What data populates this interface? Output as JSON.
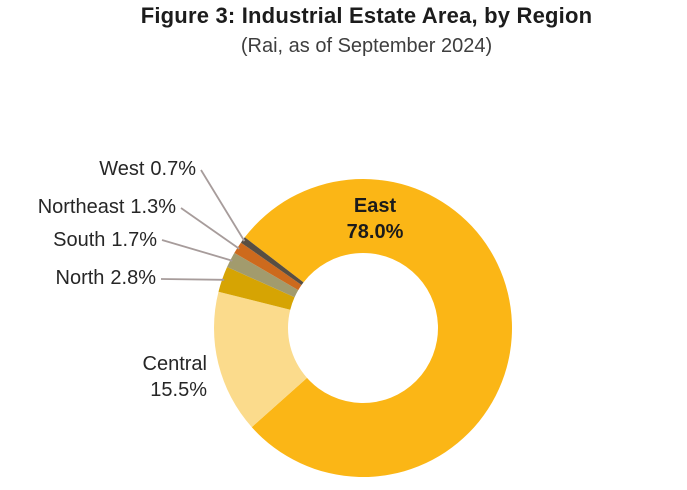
{
  "title": {
    "line1": "Figure 3: Industrial Estate Area, by Region",
    "line2": "(Rai, as of September 2024)"
  },
  "chart_data": {
    "type": "pie",
    "subtype": "donut",
    "title": "Figure 3: Industrial Estate Area, by Region",
    "subtitle": "(Rai, as of September 2024)",
    "legend_position": "none",
    "start_angle_deg_clockwise_from_top": 307.5,
    "inner_radius_ratio": 0.5,
    "slices": [
      {
        "name": "East",
        "value": 78.0,
        "label": "78.0%",
        "color": "#FBB616"
      },
      {
        "name": "Central",
        "value": 15.5,
        "label": "15.5%",
        "color": "#FBDB8C"
      },
      {
        "name": "North",
        "value": 2.8,
        "label": "2.8%",
        "color": "#D6A403"
      },
      {
        "name": "South",
        "value": 1.7,
        "label": "1.7%",
        "color": "#A29B6D"
      },
      {
        "name": "Northeast",
        "value": 1.3,
        "label": "1.3%",
        "color": "#CD6A1D"
      },
      {
        "name": "West",
        "value": 0.7,
        "label": "0.7%",
        "color": "#584E42"
      }
    ],
    "leader_line_color": "#A79C9B"
  }
}
